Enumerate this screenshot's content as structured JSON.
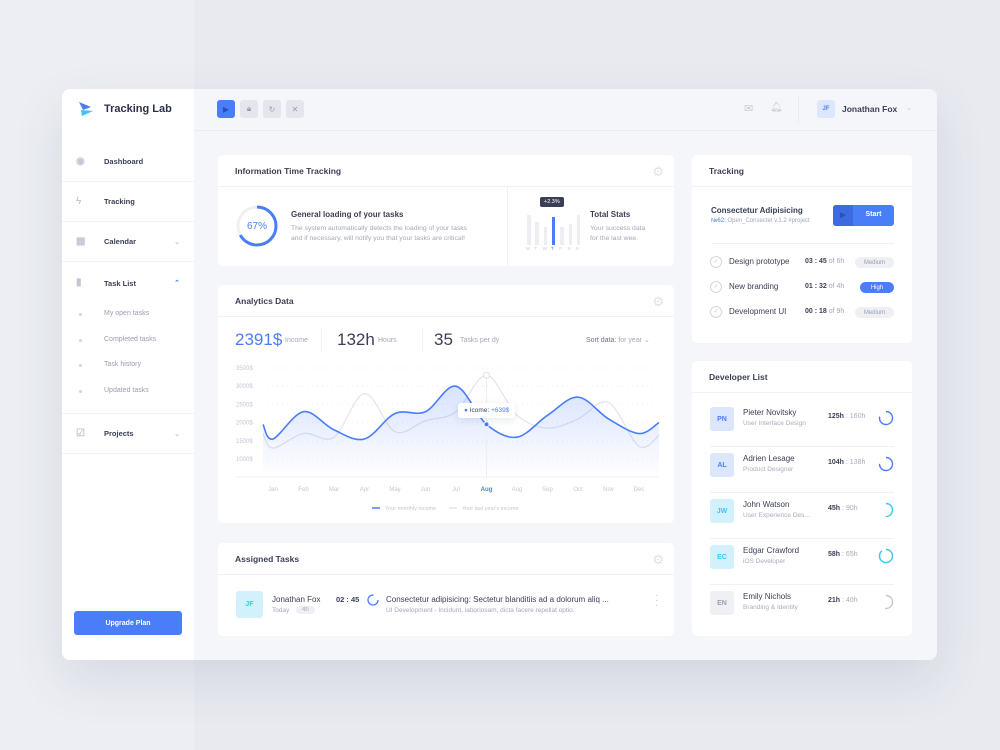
{
  "app": {
    "title": "Tracking Lab",
    "colors": {
      "accent": "#4a7df8",
      "cyan": "#3cc4f5",
      "bg": "#f5f6fa"
    }
  },
  "toolbar": {
    "buttons": [
      {
        "icon": "play-icon"
      },
      {
        "icon": "lock-icon"
      },
      {
        "icon": "refresh-icon"
      },
      {
        "icon": "close-icon"
      }
    ]
  },
  "user": {
    "initials": "JF",
    "name": "Jonathan Fox"
  },
  "sidebar": {
    "items": [
      {
        "label": "Dashboard",
        "icon": "dashboard-icon"
      },
      {
        "label": "Tracking",
        "icon": "lightning-icon"
      },
      {
        "label": "Calendar",
        "icon": "calendar-icon"
      },
      {
        "label": "Task List",
        "icon": "bar-chart-icon"
      },
      {
        "label": "Projects",
        "icon": "checkbox-icon"
      }
    ],
    "subitems": [
      "My open tasks",
      "Completed tasks",
      "Task history",
      "Updated tasks"
    ],
    "upgrade": "Upgrade Plan"
  },
  "info": {
    "title": "Information Time Tracking",
    "progress_label": "67%",
    "progress": 67,
    "heading": "General loading of your tasks",
    "text1": "The system automatically detects the loading of your tasks",
    "text2": "and if necessary, will notify you that your tasks are critical!",
    "stats_title": "Total Stats",
    "stats_text1": "Your success data",
    "stats_text2": "for the last wee.",
    "tooltip": "+2.3%",
    "days": [
      "M",
      "T",
      "W",
      "T",
      "F",
      "S",
      "S"
    ],
    "bar_levels": [
      0.9,
      0.7,
      0.55,
      0.85,
      0.55,
      0.65,
      0.9
    ],
    "active_day": 3
  },
  "analytics": {
    "title": "Analytics Data",
    "income": "2391$",
    "income_label": "Income",
    "hours": "132h",
    "hours_label": "Hours",
    "tasks": "35",
    "tasks_label": "Tasks per dy",
    "sort_label": "Sort data:",
    "sort_value": "for year",
    "tooltip_label": "Icome:",
    "tooltip_value": "+639$"
  },
  "chart_data": {
    "type": "area",
    "categories": [
      "Jan",
      "Feb",
      "Mar",
      "Apr",
      "May",
      "Jun",
      "Jul",
      "Aug",
      "Aug",
      "Sep",
      "Oct",
      "Nov",
      "Dec"
    ],
    "highlight_index": 7,
    "yticks": [
      "3500$",
      "3000$",
      "2500$",
      "2000$",
      "1500$",
      "1000$"
    ],
    "ylim": [
      500,
      3500
    ],
    "grid": "dotted horizontal",
    "series": [
      {
        "name": "Your monthly income",
        "color": "#4a7df8",
        "values": [
          1550,
          2300,
          1800,
          1550,
          2250,
          2300,
          3000,
          1950,
          1600,
          2200,
          2700,
          2100,
          1700
        ]
      },
      {
        "name": "Your last year's income",
        "color": "#e4e6ee",
        "values": [
          1300,
          1700,
          1600,
          2800,
          1750,
          2050,
          2300,
          3300,
          2200,
          1850,
          2100,
          2550,
          1350
        ]
      }
    ],
    "legend": "bottom"
  },
  "assigned": {
    "title": "Assigned Tasks",
    "initials": "JF",
    "name": "Jonathan Fox",
    "day": "Today",
    "dur": "4h",
    "time": "02 : 45",
    "task": "Consectetur adipisicing: Sectetur blanditiis ad a dolorum aliq ...",
    "desc": "UI Development - Incidunt, laboriosam, dicta facere repellat optio."
  },
  "tracking": {
    "title": "Tracking",
    "project": "Consectetur Adipisicing",
    "tag": "№62:",
    "meta": "Open_Consectet v.1.2 #project",
    "start": "Start",
    "tasks": [
      {
        "name": "Design prototype",
        "time": "03 : 45",
        "of": "of 6h",
        "priority": "Medium"
      },
      {
        "name": "New branding",
        "time": "01 : 32",
        "of": "of 4h",
        "priority": "High"
      },
      {
        "name": "Development UI",
        "time": "00 : 18",
        "of": "of 9h",
        "priority": "Medium"
      }
    ]
  },
  "developers": {
    "title": "Developer List",
    "list": [
      {
        "initials": "PN",
        "name": "Pieter Novitsky",
        "role": "User Interface Design",
        "done": "125h",
        "total": ": 160h",
        "progress": 0.78,
        "tone": "blue"
      },
      {
        "initials": "AL",
        "name": "Adrien Lesage",
        "role": "Product Designer",
        "done": "104h",
        "total": ": 138h",
        "progress": 0.75,
        "tone": "blue"
      },
      {
        "initials": "JW",
        "name": "John Watson",
        "role": "User Experience Des...",
        "done": "45h",
        "total": ": 90h",
        "progress": 0.5,
        "tone": "cyan"
      },
      {
        "initials": "EC",
        "name": "Edgar Crawford",
        "role": "iOS Developer",
        "done": "58h",
        "total": ": 65h",
        "progress": 0.89,
        "tone": "cyan"
      },
      {
        "initials": "EN",
        "name": "Emily Nichols",
        "role": "Branding & Identity",
        "done": "21h",
        "total": ": 40h",
        "progress": 0.52,
        "tone": "gray"
      }
    ]
  }
}
